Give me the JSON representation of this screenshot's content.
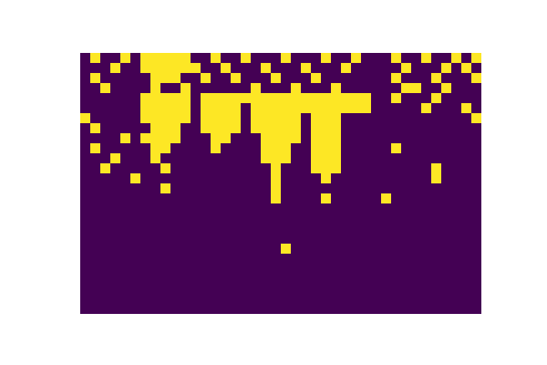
{
  "chart_data": {
    "type": "heatmap",
    "tick_labels": false,
    "colors": [
      "#440154",
      "#fde725"
    ],
    "cells": [
      [
        0,
        1,
        0,
        0,
        1,
        0,
        1,
        1,
        1,
        1,
        1,
        0,
        0,
        1,
        0,
        0,
        1,
        0,
        0,
        0,
        1,
        0,
        0,
        0,
        1,
        0,
        0,
        1,
        0,
        0,
        0,
        1,
        0,
        0,
        1,
        0,
        0,
        1,
        0,
        1
      ],
      [
        0,
        0,
        0,
        1,
        0,
        0,
        1,
        1,
        1,
        1,
        1,
        1,
        0,
        0,
        1,
        0,
        0,
        0,
        1,
        0,
        0,
        0,
        1,
        0,
        0,
        0,
        1,
        0,
        0,
        0,
        0,
        0,
        1,
        0,
        0,
        0,
        1,
        0,
        1,
        0
      ],
      [
        0,
        1,
        0,
        0,
        0,
        0,
        0,
        1,
        1,
        1,
        0,
        0,
        1,
        0,
        0,
        1,
        0,
        0,
        0,
        1,
        0,
        0,
        0,
        1,
        0,
        0,
        0,
        0,
        0,
        0,
        0,
        1,
        0,
        0,
        0,
        1,
        0,
        0,
        0,
        1
      ],
      [
        0,
        0,
        1,
        0,
        0,
        0,
        0,
        1,
        0,
        0,
        1,
        0,
        0,
        0,
        0,
        0,
        0,
        1,
        0,
        0,
        0,
        1,
        0,
        0,
        0,
        1,
        0,
        0,
        0,
        0,
        0,
        0,
        1,
        1,
        0,
        0,
        1,
        0,
        0,
        0
      ],
      [
        0,
        0,
        0,
        0,
        0,
        0,
        1,
        1,
        1,
        1,
        1,
        0,
        1,
        1,
        1,
        1,
        1,
        1,
        1,
        1,
        1,
        1,
        1,
        1,
        1,
        1,
        1,
        1,
        1,
        0,
        0,
        1,
        0,
        0,
        0,
        1,
        0,
        0,
        0,
        0
      ],
      [
        0,
        0,
        0,
        0,
        0,
        0,
        1,
        1,
        1,
        1,
        1,
        0,
        1,
        1,
        1,
        1,
        0,
        1,
        1,
        1,
        1,
        1,
        1,
        1,
        1,
        1,
        1,
        1,
        1,
        0,
        0,
        0,
        0,
        0,
        1,
        0,
        0,
        0,
        1,
        0
      ],
      [
        1,
        0,
        0,
        0,
        0,
        0,
        1,
        1,
        1,
        1,
        1,
        0,
        1,
        1,
        1,
        1,
        0,
        1,
        1,
        1,
        1,
        1,
        0,
        1,
        1,
        1,
        0,
        0,
        0,
        0,
        0,
        0,
        0,
        0,
        0,
        0,
        0,
        0,
        0,
        1
      ],
      [
        0,
        1,
        0,
        0,
        0,
        0,
        0,
        1,
        1,
        1,
        0,
        0,
        1,
        1,
        1,
        1,
        0,
        1,
        1,
        1,
        1,
        1,
        0,
        1,
        1,
        1,
        0,
        0,
        0,
        0,
        0,
        0,
        0,
        0,
        0,
        0,
        0,
        0,
        0,
        0
      ],
      [
        0,
        0,
        0,
        0,
        1,
        0,
        1,
        1,
        1,
        1,
        0,
        0,
        0,
        1,
        1,
        0,
        0,
        0,
        1,
        1,
        1,
        1,
        0,
        1,
        1,
        1,
        0,
        0,
        0,
        0,
        0,
        0,
        0,
        0,
        0,
        0,
        0,
        0,
        0,
        0
      ],
      [
        0,
        1,
        0,
        0,
        0,
        0,
        0,
        1,
        1,
        0,
        0,
        0,
        0,
        1,
        0,
        0,
        0,
        0,
        1,
        1,
        1,
        0,
        0,
        1,
        1,
        1,
        0,
        0,
        0,
        0,
        0,
        1,
        0,
        0,
        0,
        0,
        0,
        0,
        0,
        0
      ],
      [
        0,
        0,
        0,
        1,
        0,
        0,
        0,
        1,
        0,
        0,
        0,
        0,
        0,
        0,
        0,
        0,
        0,
        0,
        1,
        1,
        1,
        0,
        0,
        1,
        1,
        1,
        0,
        0,
        0,
        0,
        0,
        0,
        0,
        0,
        0,
        0,
        0,
        0,
        0,
        0
      ],
      [
        0,
        0,
        1,
        0,
        0,
        0,
        0,
        0,
        1,
        0,
        0,
        0,
        0,
        0,
        0,
        0,
        0,
        0,
        0,
        1,
        0,
        0,
        0,
        1,
        1,
        1,
        0,
        0,
        0,
        0,
        0,
        0,
        0,
        0,
        0,
        1,
        0,
        0,
        0,
        0
      ],
      [
        0,
        0,
        0,
        0,
        0,
        1,
        0,
        0,
        0,
        0,
        0,
        0,
        0,
        0,
        0,
        0,
        0,
        0,
        0,
        1,
        0,
        0,
        0,
        0,
        1,
        0,
        0,
        0,
        0,
        0,
        0,
        0,
        0,
        0,
        0,
        1,
        0,
        0,
        0,
        0
      ],
      [
        0,
        0,
        0,
        0,
        0,
        0,
        0,
        0,
        1,
        0,
        0,
        0,
        0,
        0,
        0,
        0,
        0,
        0,
        0,
        1,
        0,
        0,
        0,
        0,
        0,
        0,
        0,
        0,
        0,
        0,
        0,
        0,
        0,
        0,
        0,
        0,
        0,
        0,
        0,
        0
      ],
      [
        0,
        0,
        0,
        0,
        0,
        0,
        0,
        0,
        0,
        0,
        0,
        0,
        0,
        0,
        0,
        0,
        0,
        0,
        0,
        1,
        0,
        0,
        0,
        0,
        1,
        0,
        0,
        0,
        0,
        0,
        1,
        0,
        0,
        0,
        0,
        0,
        0,
        0,
        0,
        0
      ],
      [
        0,
        0,
        0,
        0,
        0,
        0,
        0,
        0,
        0,
        0,
        0,
        0,
        0,
        0,
        0,
        0,
        0,
        0,
        0,
        0,
        0,
        0,
        0,
        0,
        0,
        0,
        0,
        0,
        0,
        0,
        0,
        0,
        0,
        0,
        0,
        0,
        0,
        0,
        0,
        0
      ],
      [
        0,
        0,
        0,
        0,
        0,
        0,
        0,
        0,
        0,
        0,
        0,
        0,
        0,
        0,
        0,
        0,
        0,
        0,
        0,
        0,
        0,
        0,
        0,
        0,
        0,
        0,
        0,
        0,
        0,
        0,
        0,
        0,
        0,
        0,
        0,
        0,
        0,
        0,
        0,
        0
      ],
      [
        0,
        0,
        0,
        0,
        0,
        0,
        0,
        0,
        0,
        0,
        0,
        0,
        0,
        0,
        0,
        0,
        0,
        0,
        0,
        0,
        0,
        0,
        0,
        0,
        0,
        0,
        0,
        0,
        0,
        0,
        0,
        0,
        0,
        0,
        0,
        0,
        0,
        0,
        0,
        0
      ],
      [
        0,
        0,
        0,
        0,
        0,
        0,
        0,
        0,
        0,
        0,
        0,
        0,
        0,
        0,
        0,
        0,
        0,
        0,
        0,
        0,
        0,
        0,
        0,
        0,
        0,
        0,
        0,
        0,
        0,
        0,
        0,
        0,
        0,
        0,
        0,
        0,
        0,
        0,
        0,
        0
      ],
      [
        0,
        0,
        0,
        0,
        0,
        0,
        0,
        0,
        0,
        0,
        0,
        0,
        0,
        0,
        0,
        0,
        0,
        0,
        0,
        0,
        1,
        0,
        0,
        0,
        0,
        0,
        0,
        0,
        0,
        0,
        0,
        0,
        0,
        0,
        0,
        0,
        0,
        0,
        0,
        0
      ],
      [
        0,
        0,
        0,
        0,
        0,
        0,
        0,
        0,
        0,
        0,
        0,
        0,
        0,
        0,
        0,
        0,
        0,
        0,
        0,
        0,
        0,
        0,
        0,
        0,
        0,
        0,
        0,
        0,
        0,
        0,
        0,
        0,
        0,
        0,
        0,
        0,
        0,
        0,
        0,
        0
      ],
      [
        0,
        0,
        0,
        0,
        0,
        0,
        0,
        0,
        0,
        0,
        0,
        0,
        0,
        0,
        0,
        0,
        0,
        0,
        0,
        0,
        0,
        0,
        0,
        0,
        0,
        0,
        0,
        0,
        0,
        0,
        0,
        0,
        0,
        0,
        0,
        0,
        0,
        0,
        0,
        0
      ],
      [
        0,
        0,
        0,
        0,
        0,
        0,
        0,
        0,
        0,
        0,
        0,
        0,
        0,
        0,
        0,
        0,
        0,
        0,
        0,
        0,
        0,
        0,
        0,
        0,
        0,
        0,
        0,
        0,
        0,
        0,
        0,
        0,
        0,
        0,
        0,
        0,
        0,
        0,
        0,
        0
      ],
      [
        0,
        0,
        0,
        0,
        0,
        0,
        0,
        0,
        0,
        0,
        0,
        0,
        0,
        0,
        0,
        0,
        0,
        0,
        0,
        0,
        0,
        0,
        0,
        0,
        0,
        0,
        0,
        0,
        0,
        0,
        0,
        0,
        0,
        0,
        0,
        0,
        0,
        0,
        0,
        0
      ],
      [
        0,
        0,
        0,
        0,
        0,
        0,
        0,
        0,
        0,
        0,
        0,
        0,
        0,
        0,
        0,
        0,
        0,
        0,
        0,
        0,
        0,
        0,
        0,
        0,
        0,
        0,
        0,
        0,
        0,
        0,
        0,
        0,
        0,
        0,
        0,
        0,
        0,
        0,
        0,
        0
      ],
      [
        0,
        0,
        0,
        0,
        0,
        0,
        0,
        0,
        0,
        0,
        0,
        0,
        0,
        0,
        0,
        0,
        0,
        0,
        0,
        0,
        0,
        0,
        0,
        0,
        0,
        0,
        0,
        0,
        0,
        0,
        0,
        0,
        0,
        0,
        0,
        0,
        0,
        0,
        0,
        0
      ]
    ]
  }
}
